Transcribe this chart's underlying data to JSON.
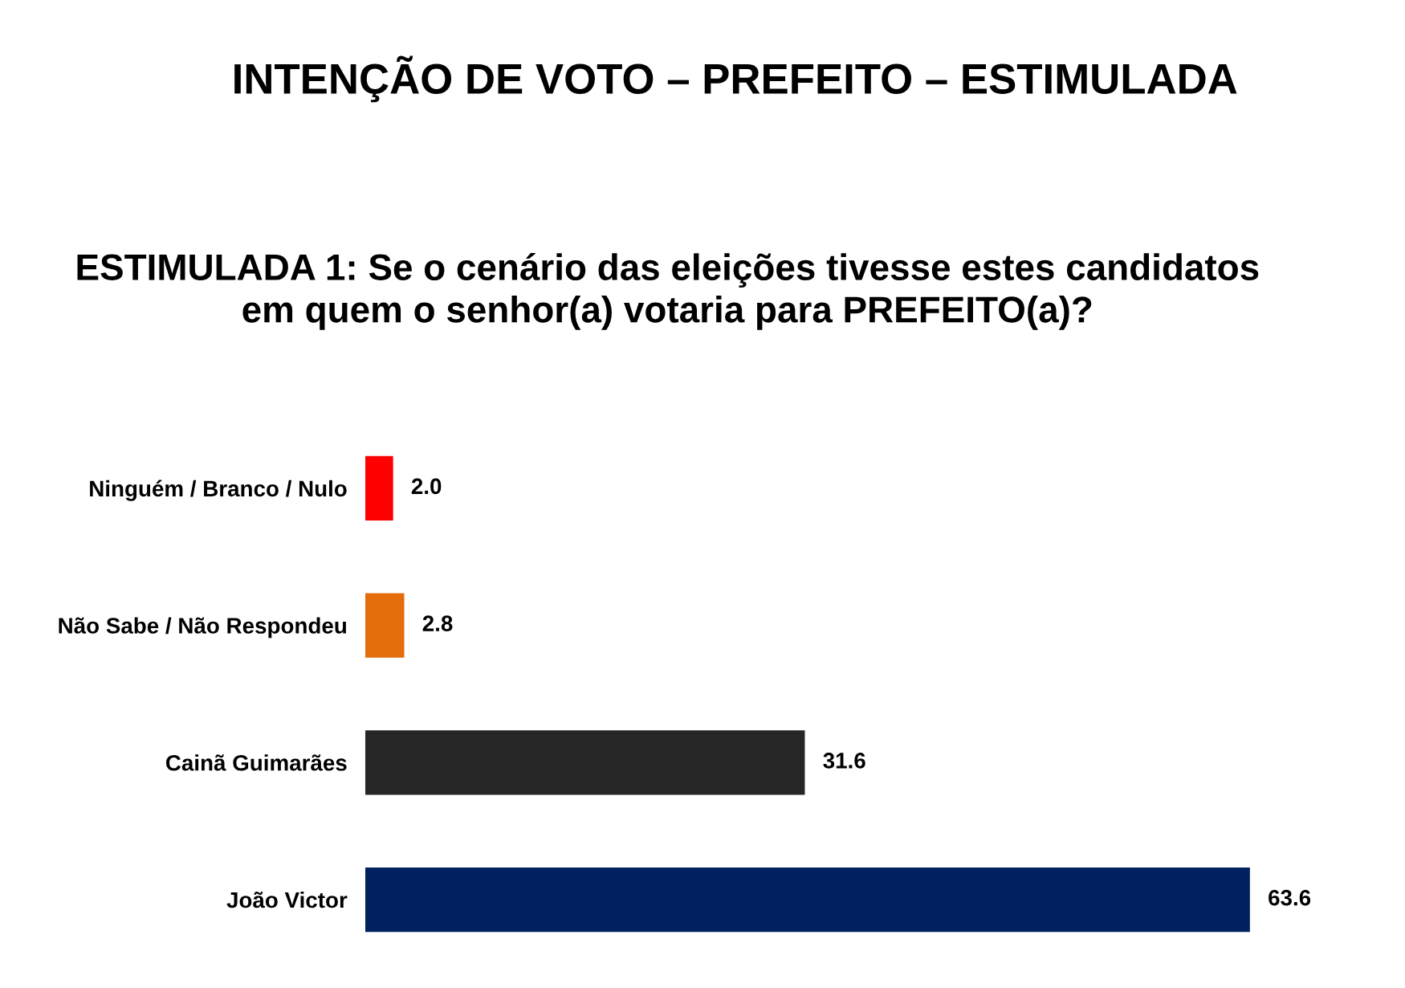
{
  "chart_data": {
    "type": "bar",
    "orientation": "horizontal",
    "title": "INTENÇÃO DE VOTO – PREFEITO – ESTIMULADA",
    "subtitle": "ESTIMULADA 1: Se o cenário das eleições tivesse estes candidatos\nem quem o senhor(a) votaria para PREFEITO(a)?",
    "categories": [
      "Ninguém / Branco / Nulo",
      "Não Sabe / Não Respondeu",
      "Cainã Guimarães",
      "João Victor"
    ],
    "values": [
      2.0,
      2.8,
      31.6,
      63.6
    ],
    "colors": [
      "#ff0000",
      "#e46c0a",
      "#262626",
      "#002060"
    ],
    "value_labels": [
      "2.0",
      "2.8",
      "31.6",
      "63.6"
    ],
    "legend": false,
    "grid": false
  }
}
